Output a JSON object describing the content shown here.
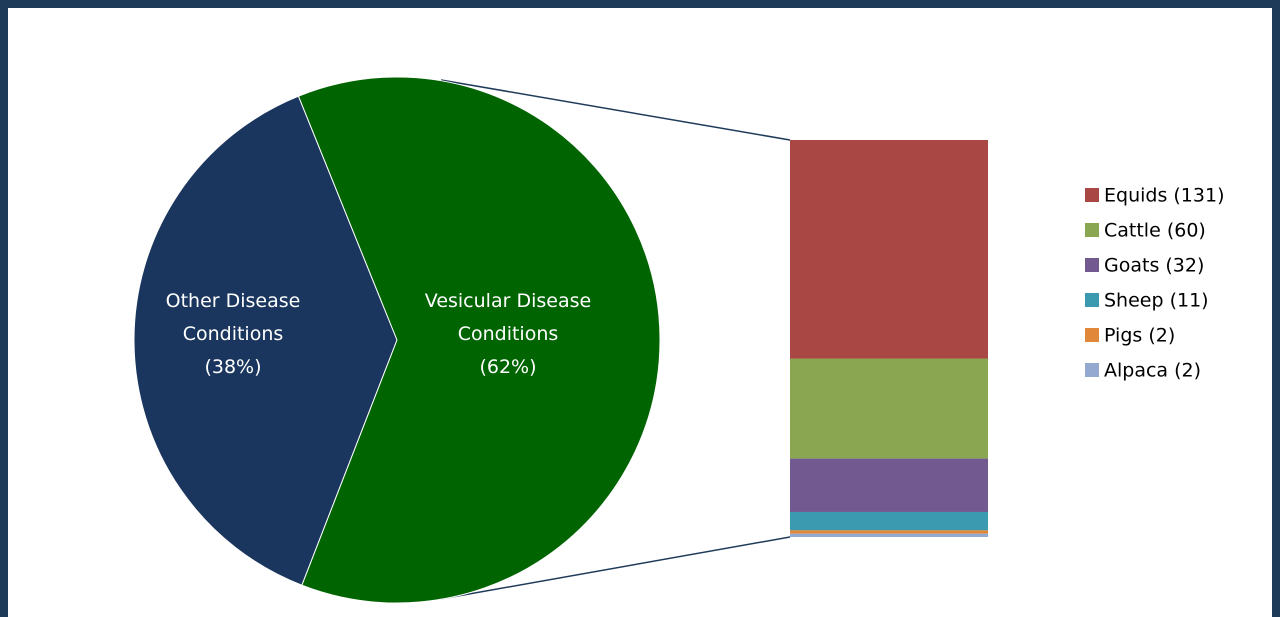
{
  "chart_data": [
    {
      "type": "pie",
      "categories": [
        "Other Disease Conditions",
        "Vesicular Disease Conditions"
      ],
      "values": [
        38,
        62
      ],
      "value_labels": [
        "(38%)",
        "(62%)"
      ],
      "colors": [
        "#1a365e",
        "#006400"
      ]
    },
    {
      "type": "bar",
      "stacked": true,
      "legend": "right",
      "series": [
        {
          "name": "Equids (131)",
          "color": "#a94744",
          "values": [
            131
          ]
        },
        {
          "name": "Cattle (60)",
          "color": "#8ba650",
          "values": [
            60
          ]
        },
        {
          "name": "Goats (32)",
          "color": "#725a91",
          "values": [
            32
          ]
        },
        {
          "name": "Sheep (11)",
          "color": "#3b9ab0",
          "values": [
            11
          ]
        },
        {
          "name": "Pigs (2)",
          "color": "#e0873a",
          "values": [
            2
          ]
        },
        {
          "name": "Alpaca (2)",
          "color": "#93a9cf",
          "values": [
            2
          ]
        }
      ]
    }
  ]
}
